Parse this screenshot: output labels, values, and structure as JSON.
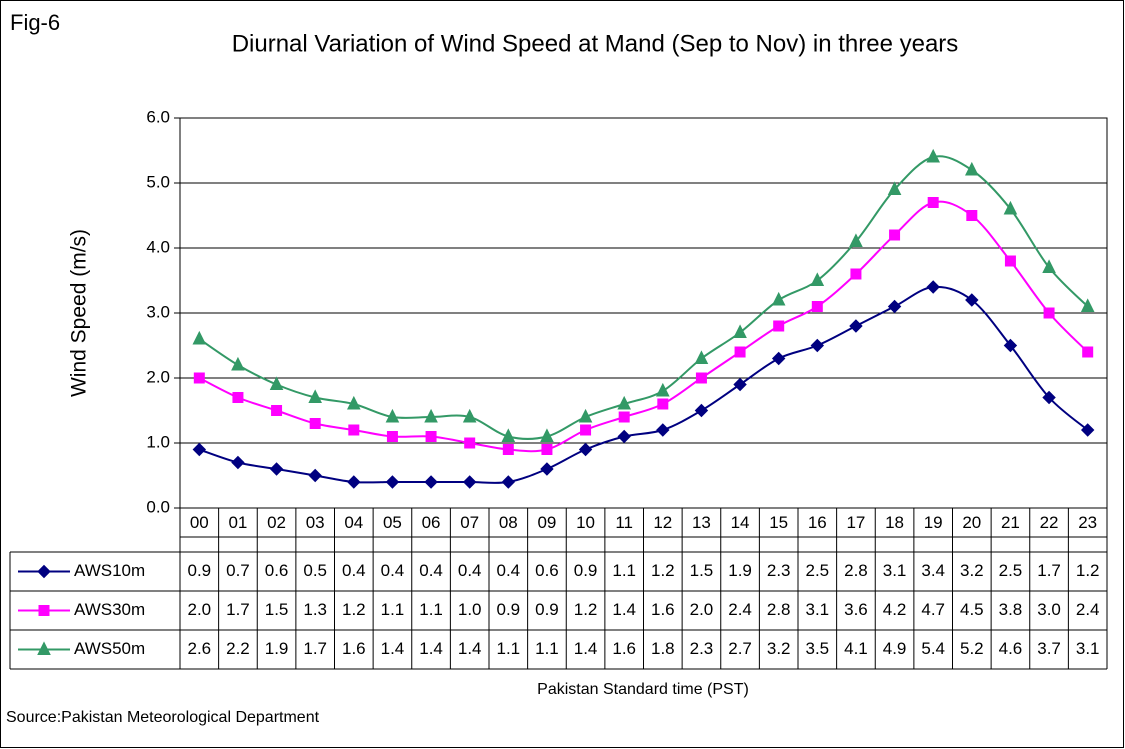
{
  "fig_label": "Fig-6",
  "source": "Source:Pakistan Meteorological Department",
  "chart_data": {
    "type": "line",
    "title": "Diurnal Variation of Wind Speed at Mand (Sep to Nov) in three years",
    "y_label": "Wind Speed (m/s)",
    "x_label": "Pakistan Standard time (PST)",
    "categories": [
      "00",
      "01",
      "02",
      "03",
      "04",
      "05",
      "06",
      "07",
      "08",
      "09",
      "10",
      "11",
      "12",
      "13",
      "14",
      "15",
      "16",
      "17",
      "18",
      "19",
      "20",
      "21",
      "22",
      "23"
    ],
    "ylim": [
      0,
      6
    ],
    "yticks": [
      {
        "value": 0,
        "label": "0.0"
      },
      {
        "value": 1,
        "label": "1.0"
      },
      {
        "value": 2,
        "label": "2.0"
      },
      {
        "value": 3,
        "label": "3.0"
      },
      {
        "value": 4,
        "label": "4.0"
      },
      {
        "value": 5,
        "label": "5.0"
      },
      {
        "value": 6,
        "label": "6.0"
      }
    ],
    "grid": true,
    "series": [
      {
        "name": "AWS10m",
        "color": "#000080",
        "marker": "diamond",
        "values": [
          0.9,
          0.7,
          0.6,
          0.5,
          0.4,
          0.4,
          0.4,
          0.4,
          0.4,
          0.6,
          0.9,
          1.1,
          1.2,
          1.5,
          1.9,
          2.3,
          2.5,
          2.8,
          3.1,
          3.4,
          3.2,
          2.5,
          1.7,
          1.2
        ],
        "value_labels": [
          "0.9",
          "0.7",
          "0.6",
          "0.5",
          "0.4",
          "0.4",
          "0.4",
          "0.4",
          "0.4",
          "0.6",
          "0.9",
          "1.1",
          "1.2",
          "1.5",
          "1.9",
          "2.3",
          "2.5",
          "2.8",
          "3.1",
          "3.4",
          "3.2",
          "2.5",
          "1.7",
          "1.2"
        ]
      },
      {
        "name": "AWS30m",
        "color": "#FF00FF",
        "marker": "square",
        "values": [
          2.0,
          1.7,
          1.5,
          1.3,
          1.2,
          1.1,
          1.1,
          1.0,
          0.9,
          0.9,
          1.2,
          1.4,
          1.6,
          2.0,
          2.4,
          2.8,
          3.1,
          3.6,
          4.2,
          4.7,
          4.5,
          3.8,
          3.0,
          2.4
        ],
        "value_labels": [
          "2.0",
          "1.7",
          "1.5",
          "1.3",
          "1.2",
          "1.1",
          "1.1",
          "1.0",
          "0.9",
          "0.9",
          "1.2",
          "1.4",
          "1.6",
          "2.0",
          "2.4",
          "2.8",
          "3.1",
          "3.6",
          "4.2",
          "4.7",
          "4.5",
          "3.8",
          "3.0",
          "2.4"
        ]
      },
      {
        "name": "AWS50m",
        "color": "#339966",
        "marker": "triangle",
        "values": [
          2.6,
          2.2,
          1.9,
          1.7,
          1.6,
          1.4,
          1.4,
          1.4,
          1.1,
          1.1,
          1.4,
          1.6,
          1.8,
          2.3,
          2.7,
          3.2,
          3.5,
          4.1,
          4.9,
          5.4,
          5.2,
          4.6,
          3.7,
          3.1
        ],
        "value_labels": [
          "2.6",
          "2.2",
          "1.9",
          "1.7",
          "1.6",
          "1.4",
          "1.4",
          "1.4",
          "1.1",
          "1.1",
          "1.4",
          "1.6",
          "1.8",
          "2.3",
          "2.7",
          "3.2",
          "3.5",
          "4.1",
          "4.9",
          "5.4",
          "5.2",
          "4.6",
          "3.7",
          "3.1"
        ]
      }
    ]
  }
}
